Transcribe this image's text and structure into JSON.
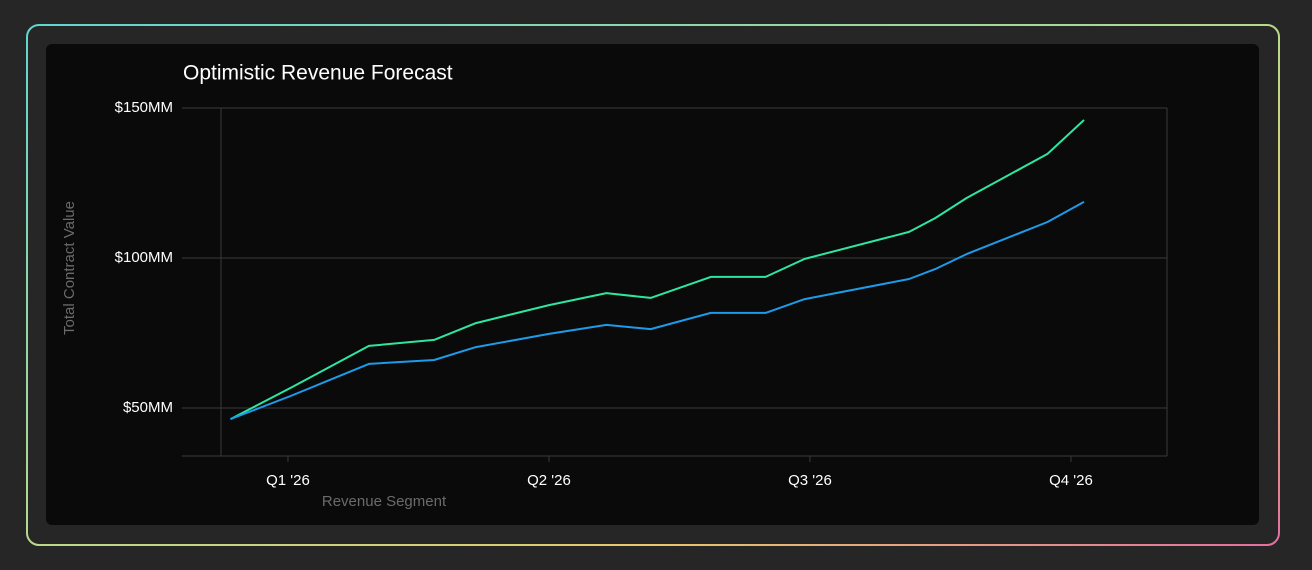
{
  "chart_data": {
    "type": "line",
    "title": "Optimistic Revenue Forecast",
    "y_label": "Total Contract Value",
    "x_label": "Revenue Segment",
    "x": [
      0.78,
      1.01,
      1.31,
      1.56,
      1.72,
      2.0,
      2.22,
      2.39,
      2.62,
      2.83,
      2.98,
      3.38,
      3.48,
      3.6,
      3.91,
      4.05
    ],
    "series": [
      {
        "color": "#2ee6a0",
        "values": [
          46.3,
          56.7,
          70.7,
          72.7,
          78.3,
          84.3,
          88.3,
          86.7,
          93.7,
          93.7,
          99.7,
          108.7,
          113.3,
          120,
          134.7,
          146
        ]
      },
      {
        "color": "#1e9be8",
        "values": [
          46.3,
          54,
          64.7,
          66,
          70.3,
          74.7,
          77.7,
          76.3,
          81.7,
          81.7,
          86.3,
          93,
          96.3,
          101.3,
          112,
          118.7
        ]
      }
    ],
    "xlim": [
      0.594,
      4.368
    ],
    "xticks": [
      {
        "value": 1,
        "label": "Q1 '26"
      },
      {
        "value": 2,
        "label": "Q2 '26"
      },
      {
        "value": 3,
        "label": "Q3 '26"
      },
      {
        "value": 4,
        "label": "Q4 '26"
      }
    ],
    "ylim": [
      34,
      150
    ],
    "yticks": [
      {
        "value": 50,
        "label": "$50MM"
      },
      {
        "value": 100,
        "label": "$100MM"
      },
      {
        "value": 150,
        "label": "$150MM"
      }
    ],
    "grid": true
  }
}
